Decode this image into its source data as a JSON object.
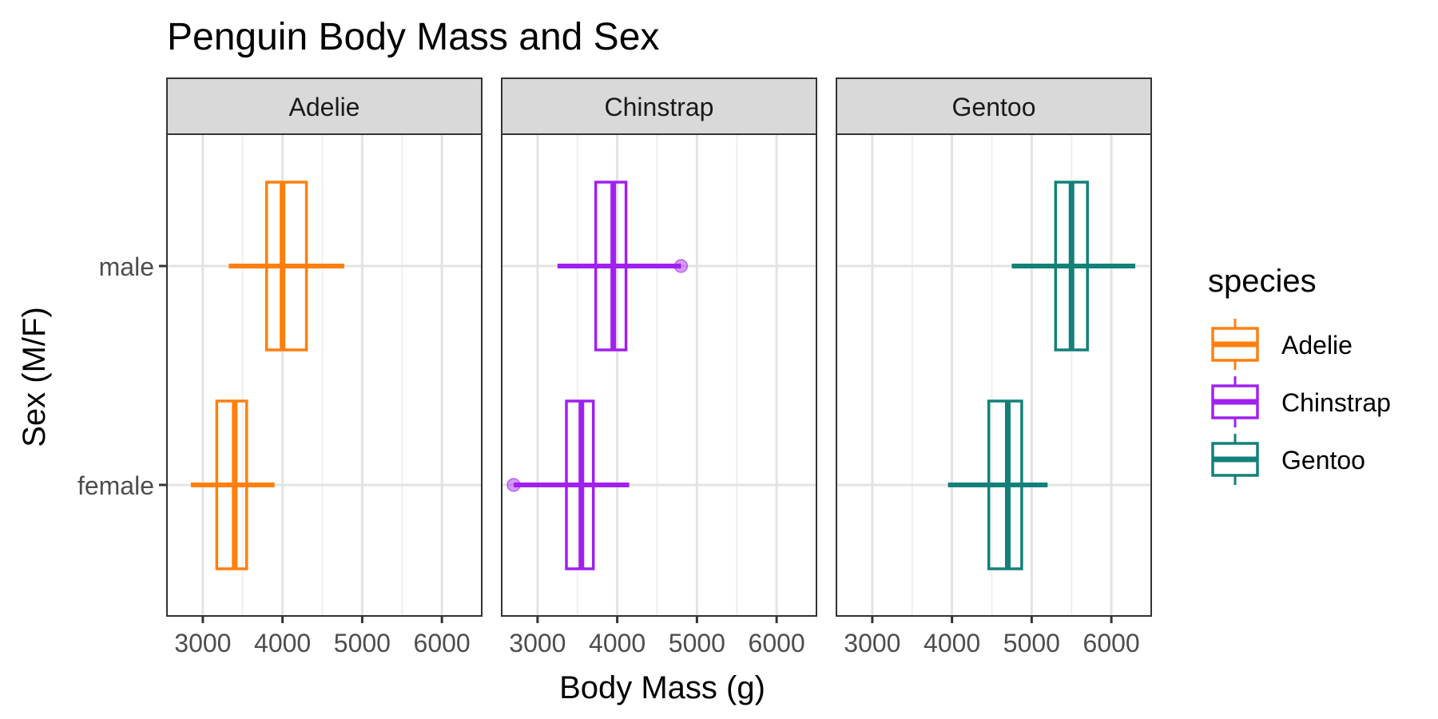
{
  "chart_data": {
    "type": "boxplot",
    "title": "Penguin Body Mass and Sex",
    "xlabel": "Body Mass (g)",
    "ylabel": "Sex (M/F)",
    "xlim": [
      2550,
      6500
    ],
    "xticks": [
      3000,
      4000,
      5000,
      6000
    ],
    "categories": [
      "male",
      "female"
    ],
    "grid": true,
    "facets": [
      {
        "name": "Adelie",
        "color": "#FF7F0E",
        "boxes": [
          {
            "sex": "male",
            "min": 3325,
            "q1": 3800,
            "median": 4000,
            "q3": 4300,
            "max": 4775,
            "outliers": []
          },
          {
            "sex": "female",
            "min": 2850,
            "q1": 3175,
            "median": 3400,
            "q3": 3550,
            "max": 3900,
            "outliers": []
          }
        ]
      },
      {
        "name": "Chinstrap",
        "color": "#A020F0",
        "boxes": [
          {
            "sex": "male",
            "min": 3250,
            "q1": 3730,
            "median": 3950,
            "q3": 4110,
            "max": 4800,
            "outliers": [
              4800
            ]
          },
          {
            "sex": "female",
            "min": 2700,
            "q1": 3362,
            "median": 3550,
            "q3": 3700,
            "max": 4150,
            "outliers": [
              2700
            ]
          }
        ]
      },
      {
        "name": "Gentoo",
        "color": "#138079",
        "boxes": [
          {
            "sex": "male",
            "min": 4750,
            "q1": 5300,
            "median": 5500,
            "q3": 5700,
            "max": 6300,
            "outliers": []
          },
          {
            "sex": "female",
            "min": 3950,
            "q1": 4462,
            "median": 4700,
            "q3": 4875,
            "max": 5200,
            "outliers": []
          }
        ]
      }
    ],
    "legend": {
      "title": "species",
      "position": "right",
      "items": [
        {
          "label": "Adelie",
          "color": "#FF7F0E"
        },
        {
          "label": "Chinstrap",
          "color": "#A020F0"
        },
        {
          "label": "Gentoo",
          "color": "#138079"
        }
      ]
    }
  }
}
